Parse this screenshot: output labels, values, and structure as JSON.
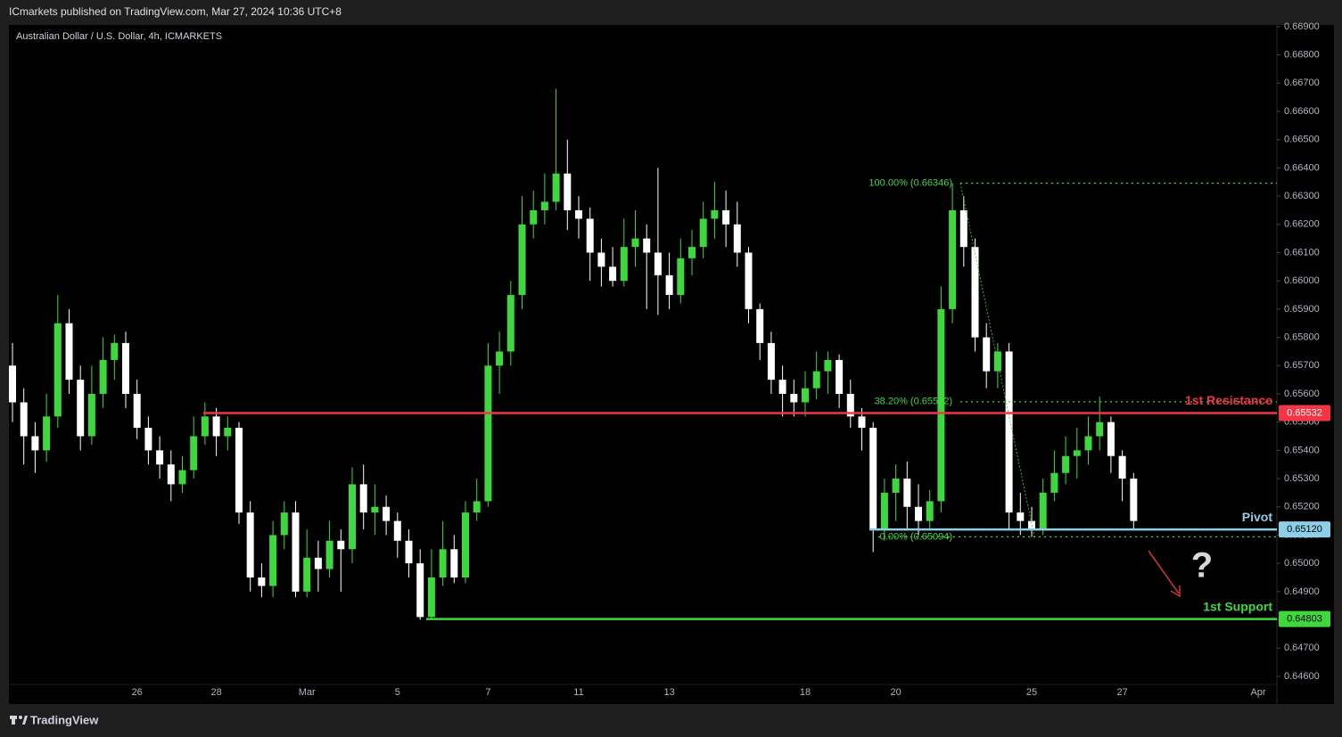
{
  "header": {
    "published": "ICmarkets published on TradingView.com, Mar 27, 2024 10:36 UTC+8",
    "footer_brand": "TradingView"
  },
  "chart_data": {
    "type": "candlestick",
    "title": "Australian Dollar / U.S. Dollar, 4h, ICMARKETS",
    "categories": [
      null,
      null,
      null,
      null,
      null,
      null,
      null,
      null,
      null,
      null,
      null,
      "26",
      null,
      null,
      null,
      null,
      null,
      null,
      "28",
      null,
      null,
      null,
      null,
      null,
      null,
      null,
      "Mar",
      null,
      null,
      null,
      null,
      null,
      null,
      null,
      "5",
      null,
      null,
      null,
      null,
      null,
      null,
      null,
      "7",
      null,
      null,
      null,
      null,
      null,
      null,
      null,
      "11",
      null,
      null,
      null,
      null,
      null,
      null,
      null,
      "13",
      null,
      null,
      null,
      null,
      null,
      null,
      null,
      null,
      null,
      null,
      null,
      "18",
      null,
      null,
      null,
      null,
      null,
      null,
      null,
      "20",
      null,
      null,
      null,
      null,
      null,
      null,
      null,
      null,
      null,
      null,
      null,
      "25",
      null,
      null,
      null,
      null,
      null,
      null,
      null,
      "27",
      null,
      null,
      null,
      null,
      null,
      null,
      null,
      null,
      null,
      null,
      null,
      "Apr"
    ],
    "open": [
      0.657,
      0.6557,
      0.6545,
      0.654,
      0.6552,
      0.6585,
      0.6565,
      0.6545,
      0.656,
      0.6572,
      0.6578,
      0.656,
      0.6548,
      0.654,
      0.6535,
      0.6528,
      0.6533,
      0.6545,
      0.6552,
      0.6545,
      0.6548,
      0.6518,
      0.6495,
      0.6492,
      0.651,
      0.6518,
      0.649,
      0.6502,
      0.6498,
      0.6508,
      0.6505,
      0.6528,
      0.6518,
      0.652,
      0.6515,
      0.6508,
      0.65,
      0.6481,
      0.6495,
      0.6505,
      0.6495,
      0.6518,
      0.6522,
      0.657,
      0.6575,
      0.6595,
      0.662,
      0.6625,
      0.6628,
      0.6638,
      0.6625,
      0.6622,
      0.661,
      0.6605,
      0.66,
      0.6612,
      0.6615,
      0.661,
      0.6602,
      0.6595,
      0.6608,
      0.6612,
      0.6622,
      0.6625,
      0.662,
      0.661,
      0.659,
      0.6578,
      0.6565,
      0.656,
      0.6557,
      0.6562,
      0.6568,
      0.6572,
      0.656,
      0.6552,
      0.6548,
      0.6512,
      0.6525,
      0.653,
      0.652,
      0.6515,
      0.6522,
      0.659,
      0.6625,
      0.6612,
      0.658,
      0.6568,
      0.6575,
      0.6518,
      0.6515,
      0.6512,
      0.6525,
      0.6532,
      0.6538,
      0.654,
      0.6545,
      0.655,
      0.6538,
      0.653,
      null,
      null,
      null,
      null,
      null,
      null,
      null,
      null,
      null,
      null,
      null
    ],
    "high": [
      0.6578,
      0.6562,
      0.655,
      0.656,
      0.6595,
      0.659,
      0.657,
      0.657,
      0.658,
      0.6581,
      0.6582,
      0.6565,
      0.6552,
      0.6545,
      0.654,
      0.6538,
      0.6552,
      0.6557,
      0.6555,
      0.6552,
      0.655,
      0.6522,
      0.65,
      0.6515,
      0.6522,
      0.6522,
      0.6512,
      0.6508,
      0.6515,
      0.6512,
      0.6534,
      0.6535,
      0.6528,
      0.6524,
      0.6518,
      0.6512,
      0.6505,
      0.6505,
      0.6515,
      0.651,
      0.6522,
      0.653,
      0.6578,
      0.6582,
      0.66,
      0.663,
      0.6632,
      0.6638,
      0.6668,
      0.665,
      0.663,
      0.6626,
      0.6615,
      0.6612,
      0.6622,
      0.6625,
      0.662,
      0.664,
      0.661,
      0.6615,
      0.6618,
      0.6628,
      0.6635,
      0.6632,
      0.6628,
      0.6612,
      0.6592,
      0.6582,
      0.657,
      0.6565,
      0.6568,
      0.6575,
      0.6575,
      0.6574,
      0.6565,
      0.6555,
      0.655,
      0.653,
      0.6535,
      0.6536,
      0.6528,
      0.6526,
      0.6598,
      0.66346,
      0.663,
      0.6615,
      0.6585,
      0.6578,
      0.6578,
      0.6525,
      0.652,
      0.653,
      0.654,
      0.6545,
      0.6548,
      0.6552,
      0.6559,
      0.6552,
      0.654,
      0.6532,
      null,
      null,
      null,
      null,
      null,
      null,
      null,
      null,
      null,
      null,
      null
    ],
    "low": [
      0.655,
      0.6535,
      0.6532,
      0.6536,
      0.6548,
      0.656,
      0.654,
      0.6542,
      0.6555,
      0.6565,
      0.6555,
      0.6544,
      0.6535,
      0.653,
      0.6522,
      0.6525,
      0.653,
      0.6542,
      0.6538,
      0.654,
      0.6514,
      0.649,
      0.6488,
      0.6488,
      0.6505,
      0.6488,
      0.6488,
      0.649,
      0.6495,
      0.649,
      0.65,
      0.6512,
      0.651,
      0.651,
      0.6502,
      0.6495,
      0.648,
      0.648,
      0.6492,
      0.6493,
      0.6493,
      0.6515,
      0.652,
      0.656,
      0.657,
      0.659,
      0.6615,
      0.662,
      0.6625,
      0.6618,
      0.6615,
      0.66,
      0.6598,
      0.6598,
      0.6598,
      0.6605,
      0.659,
      0.6588,
      0.659,
      0.6592,
      0.6602,
      0.6608,
      0.6615,
      0.6612,
      0.6605,
      0.6585,
      0.6572,
      0.656,
      0.6552,
      0.6552,
      0.6552,
      0.6558,
      0.656,
      0.6555,
      0.6548,
      0.654,
      0.6504,
      0.6508,
      0.6515,
      0.6512,
      0.651,
      0.6512,
      0.6518,
      0.6585,
      0.6605,
      0.6575,
      0.6562,
      0.6562,
      0.6512,
      0.651,
      0.65094,
      0.651,
      0.6522,
      0.6528,
      0.653,
      0.6535,
      0.654,
      0.6532,
      0.6522,
      0.6512,
      null,
      null,
      null,
      null,
      null,
      null,
      null,
      null,
      null,
      null,
      null
    ],
    "close": [
      0.6557,
      0.6545,
      0.654,
      0.6552,
      0.6585,
      0.6565,
      0.6545,
      0.656,
      0.6572,
      0.6578,
      0.656,
      0.6548,
      0.654,
      0.6535,
      0.6528,
      0.6533,
      0.6545,
      0.6552,
      0.6545,
      0.6548,
      0.6518,
      0.6495,
      0.6492,
      0.651,
      0.6518,
      0.649,
      0.6502,
      0.6498,
      0.6508,
      0.6505,
      0.6528,
      0.6518,
      0.652,
      0.6515,
      0.6508,
      0.65,
      0.6481,
      0.6495,
      0.6505,
      0.6495,
      0.6518,
      0.6522,
      0.657,
      0.6575,
      0.6595,
      0.662,
      0.6625,
      0.6628,
      0.6638,
      0.6625,
      0.6622,
      0.661,
      0.6605,
      0.66,
      0.6612,
      0.6615,
      0.661,
      0.6602,
      0.6595,
      0.6608,
      0.6612,
      0.6622,
      0.6625,
      0.662,
      0.661,
      0.659,
      0.6578,
      0.6565,
      0.656,
      0.6557,
      0.6562,
      0.6568,
      0.6572,
      0.656,
      0.6552,
      0.6548,
      0.6512,
      0.6525,
      0.653,
      0.652,
      0.6515,
      0.6522,
      0.659,
      0.6625,
      0.6612,
      0.658,
      0.6568,
      0.6575,
      0.6518,
      0.6515,
      0.6512,
      0.6525,
      0.6532,
      0.6538,
      0.654,
      0.6545,
      0.655,
      0.6538,
      0.653,
      0.6515,
      null,
      null,
      null,
      null,
      null,
      null,
      null,
      null,
      null,
      null,
      null
    ],
    "up_color": "#3ed83e",
    "down_color": "#ffffff",
    "ylim": [
      0.64502,
      0.66906
    ],
    "yticks": [
      {
        "value": 0.646,
        "label": "0.64600"
      },
      {
        "value": 0.647,
        "label": "0.64700"
      },
      {
        "value": 0.648,
        "label": "0.64800"
      },
      {
        "value": 0.649,
        "label": "0.64900"
      },
      {
        "value": 0.65,
        "label": "0.65000"
      },
      {
        "value": 0.651,
        "label": "0.65100"
      },
      {
        "value": 0.652,
        "label": "0.65200"
      },
      {
        "value": 0.653,
        "label": "0.65300"
      },
      {
        "value": 0.654,
        "label": "0.65400"
      },
      {
        "value": 0.655,
        "label": "0.65500"
      },
      {
        "value": 0.656,
        "label": "0.65600"
      },
      {
        "value": 0.657,
        "label": "0.65700"
      },
      {
        "value": 0.658,
        "label": "0.65800"
      },
      {
        "value": 0.659,
        "label": "0.65900"
      },
      {
        "value": 0.66,
        "label": "0.66000"
      },
      {
        "value": 0.661,
        "label": "0.66100"
      },
      {
        "value": 0.662,
        "label": "0.66200"
      },
      {
        "value": 0.663,
        "label": "0.66300"
      },
      {
        "value": 0.664,
        "label": "0.66400"
      },
      {
        "value": 0.665,
        "label": "0.66500"
      },
      {
        "value": 0.666,
        "label": "0.66600"
      },
      {
        "value": 0.667,
        "label": "0.66700"
      },
      {
        "value": 0.668,
        "label": "0.66800"
      },
      {
        "value": 0.669,
        "label": "0.66900"
      }
    ],
    "levels": [
      {
        "name": "1st Resistance",
        "value": 0.65532,
        "value_label": "0.65532",
        "color": "#f23645"
      },
      {
        "name": "Pivot",
        "value": 0.6512,
        "value_label": "0.65120",
        "color": "#8ccfe6"
      },
      {
        "name": "1st Support",
        "value": 0.64803,
        "value_label": "0.64803",
        "color": "#3ed83e"
      }
    ],
    "fib": {
      "color": "#3ed83e",
      "levels": [
        {
          "label": "100.00% (0.66346)",
          "value": 0.66346
        },
        {
          "label": "38.20% (0.65572)",
          "value": 0.65572
        },
        {
          "label": "0.00% (0.65094)",
          "value": 0.65094
        }
      ]
    },
    "annotation": "?"
  }
}
